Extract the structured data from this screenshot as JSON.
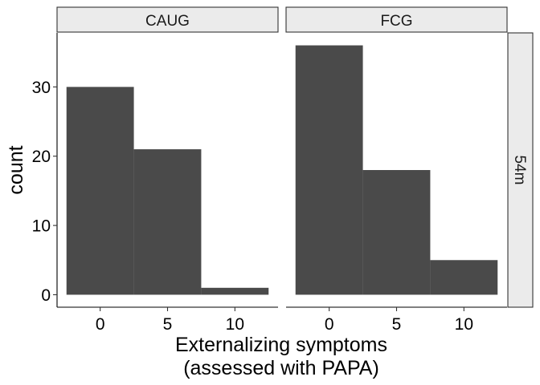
{
  "chart_data": {
    "type": "bar",
    "subtype": "faceted-histogram",
    "xlabel_line1": "Externalizing symptoms",
    "xlabel_line2": "(assessed with PAPA)",
    "ylabel": "count",
    "row_strip": "54m",
    "xlim": [
      -3.2,
      13.2
    ],
    "ylim": [
      -1.8,
      37.8
    ],
    "x_ticks": [
      0,
      5,
      10
    ],
    "y_ticks": [
      0,
      10,
      20,
      30
    ],
    "bin_width": 5,
    "bar_color": "#4a4a4a",
    "strip_fill": "#ebebeb",
    "grid": false,
    "facets": [
      {
        "label": "CAUG",
        "bins": [
          {
            "x_min": -2.5,
            "x_max": 2.5,
            "count": 30
          },
          {
            "x_min": 2.5,
            "x_max": 7.5,
            "count": 21
          },
          {
            "x_min": 7.5,
            "x_max": 12.5,
            "count": 1
          }
        ]
      },
      {
        "label": "FCG",
        "bins": [
          {
            "x_min": -2.5,
            "x_max": 2.5,
            "count": 36
          },
          {
            "x_min": 2.5,
            "x_max": 7.5,
            "count": 18
          },
          {
            "x_min": 7.5,
            "x_max": 12.5,
            "count": 5
          }
        ]
      }
    ]
  }
}
